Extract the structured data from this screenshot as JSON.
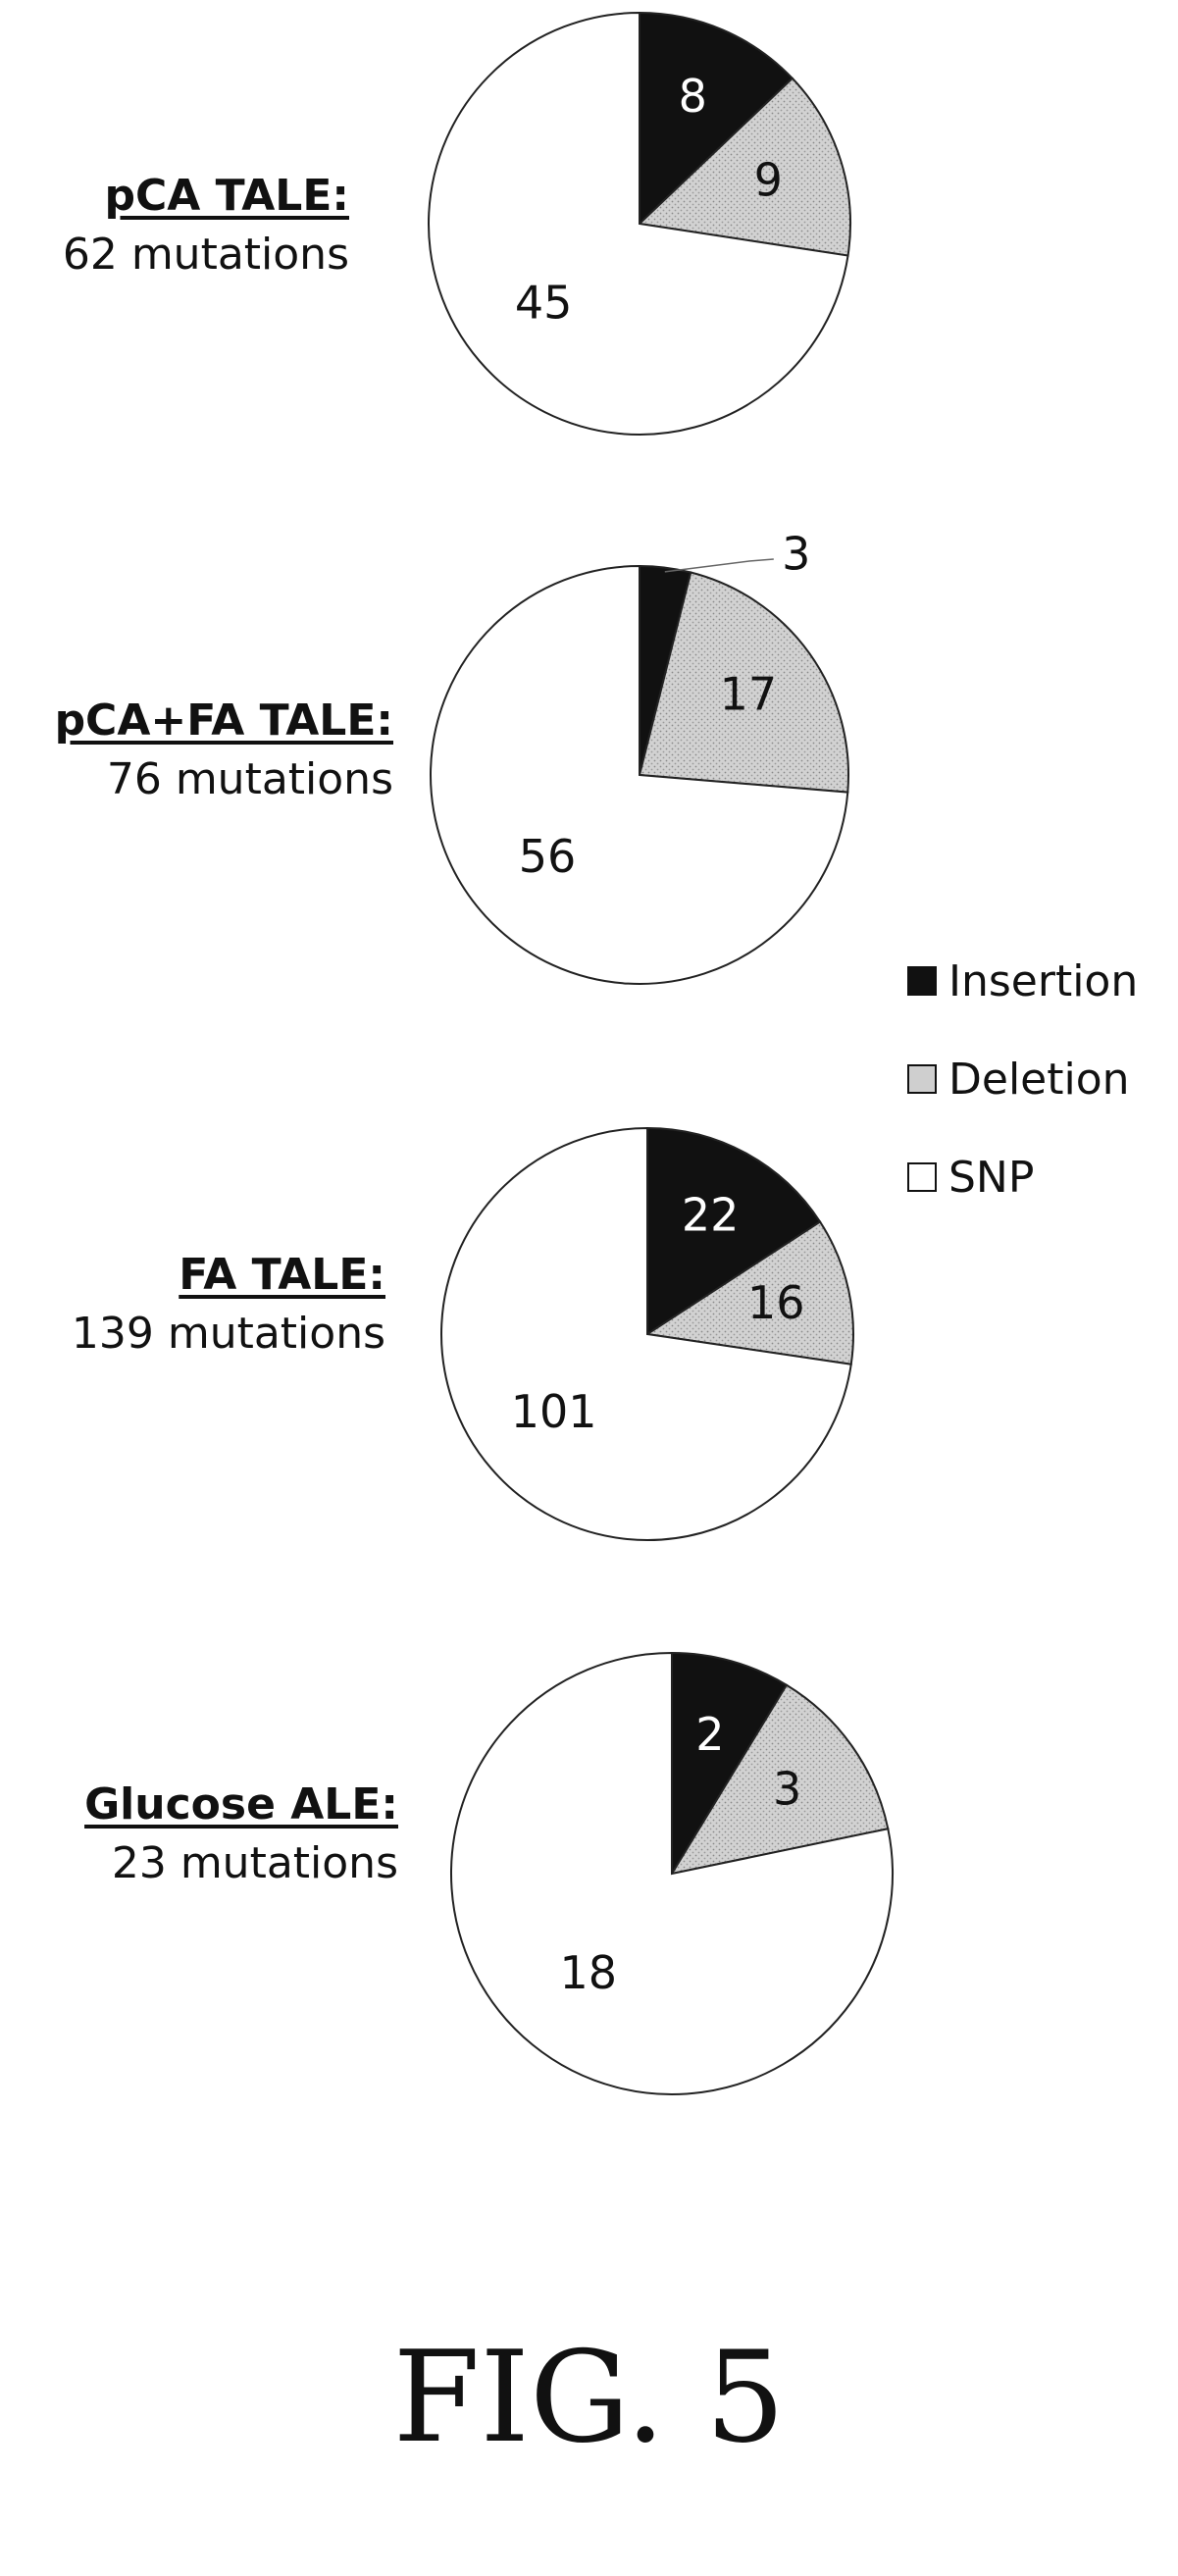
{
  "chart_data": [
    {
      "type": "pie",
      "title": "pCA TALE:",
      "subtitle": "62 mutations",
      "categories": [
        "Insertion",
        "Deletion",
        "SNP"
      ],
      "values": [
        8,
        9,
        45
      ]
    },
    {
      "type": "pie",
      "title": "pCA+FA TALE:",
      "subtitle": "76 mutations",
      "categories": [
        "Insertion",
        "Deletion",
        "SNP"
      ],
      "values": [
        3,
        17,
        56
      ]
    },
    {
      "type": "pie",
      "title": "FA TALE:",
      "subtitle": "139 mutations",
      "categories": [
        "Insertion",
        "Deletion",
        "SNP"
      ],
      "values": [
        22,
        16,
        101
      ]
    },
    {
      "type": "pie",
      "title": "Glucose ALE:",
      "subtitle": "23 mutations",
      "categories": [
        "Insertion",
        "Deletion",
        "SNP"
      ],
      "values": [
        2,
        3,
        18
      ]
    }
  ],
  "legend": {
    "items": [
      {
        "label": "Insertion",
        "color": "#111111"
      },
      {
        "label": "Deletion",
        "color": "#cfcfcf"
      },
      {
        "label": "SNP",
        "color": "#ffffff"
      }
    ]
  },
  "caption": "FIG. 5"
}
